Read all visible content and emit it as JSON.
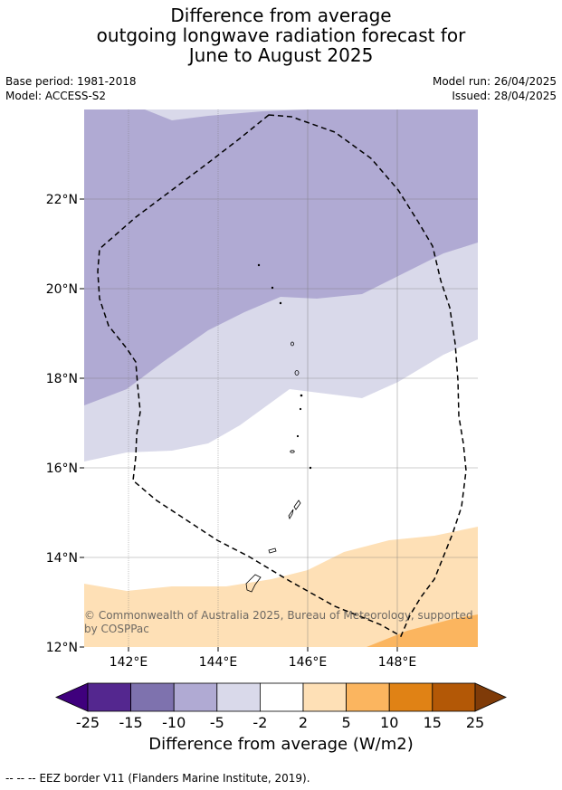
{
  "title": {
    "line1": "Difference from average",
    "line2": "outgoing longwave radiation forecast for",
    "line3": "June to August 2025"
  },
  "meta": {
    "base_period": "Base period: 1981-2018",
    "model": "Model: ACCESS-S2",
    "model_run": "Model run: 26/04/2025",
    "issued": "Issued: 28/04/2025"
  },
  "map": {
    "lat_ticks": [
      "22°N",
      "20°N",
      "18°N",
      "16°N",
      "14°N",
      "12°N"
    ],
    "lon_ticks": [
      "142°E",
      "144°E",
      "146°E",
      "148°E"
    ],
    "credit_line1": "© Commonwealth of Australia 2025, Bureau of Meteorology, supported",
    "credit_line2": "by COSPPac"
  },
  "colorbar": {
    "ticks": [
      "-25",
      "-15",
      "-10",
      "-5",
      "-2",
      "2",
      "5",
      "10",
      "15",
      "25"
    ],
    "colors": [
      "#3f007d",
      "#54278f",
      "#7e72ae",
      "#b0aad3",
      "#d9d9ea",
      "#ffffff",
      "#fee0b6",
      "#fbb55f",
      "#e08215",
      "#b35806",
      "#7f3b08"
    ],
    "label": "Difference from average (W/m2)"
  },
  "footer": {
    "legend_symbol": "--  --  --",
    "legend_text": "EEZ border V11 (Flanders Marine Institute, 2019)."
  }
}
